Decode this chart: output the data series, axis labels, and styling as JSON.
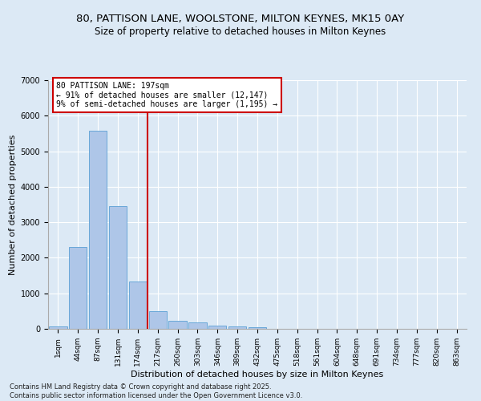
{
  "title1": "80, PATTISON LANE, WOOLSTONE, MILTON KEYNES, MK15 0AY",
  "title2": "Size of property relative to detached houses in Milton Keynes",
  "xlabel": "Distribution of detached houses by size in Milton Keynes",
  "ylabel": "Number of detached properties",
  "bar_labels": [
    "1sqm",
    "44sqm",
    "87sqm",
    "131sqm",
    "174sqm",
    "217sqm",
    "260sqm",
    "303sqm",
    "346sqm",
    "389sqm",
    "432sqm",
    "475sqm",
    "518sqm",
    "561sqm",
    "604sqm",
    "648sqm",
    "691sqm",
    "734sqm",
    "777sqm",
    "820sqm",
    "863sqm"
  ],
  "bar_values": [
    75,
    2310,
    5570,
    3450,
    1340,
    500,
    215,
    175,
    90,
    65,
    40,
    0,
    0,
    0,
    0,
    0,
    0,
    0,
    0,
    0,
    0
  ],
  "bar_color": "#aec6e8",
  "bar_edgecolor": "#5a9fd4",
  "property_label": "80 PATTISON LANE: 197sqm",
  "annotation_line1": "← 91% of detached houses are smaller (12,147)",
  "annotation_line2": "9% of semi-detached houses are larger (1,195) →",
  "vline_color": "#cc0000",
  "vline_x_index": 4.5,
  "annotation_box_color": "#cc0000",
  "ylim": [
    0,
    7000
  ],
  "yticks": [
    0,
    1000,
    2000,
    3000,
    4000,
    5000,
    6000,
    7000
  ],
  "bg_color": "#dce9f5",
  "footer1": "Contains HM Land Registry data © Crown copyright and database right 2025.",
  "footer2": "Contains public sector information licensed under the Open Government Licence v3.0."
}
